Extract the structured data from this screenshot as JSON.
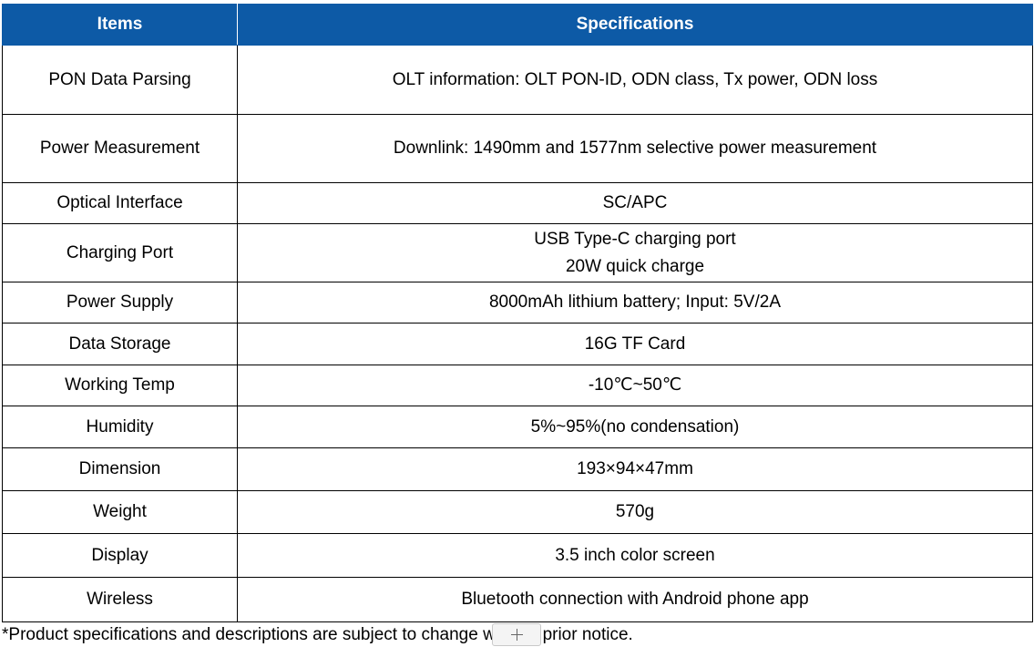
{
  "table": {
    "headers": {
      "items": "Items",
      "specifications": "Specifications"
    },
    "rows": [
      {
        "item": "PON Data Parsing",
        "spec": [
          "OLT information: OLT PON-ID, ODN class, Tx power, ODN loss"
        ]
      },
      {
        "item": "Power Measurement",
        "spec": [
          "Downlink: 1490mm and 1577nm selective power measurement"
        ]
      },
      {
        "item": "Optical Interface",
        "spec": [
          "SC/APC"
        ]
      },
      {
        "item": "Charging Port",
        "spec": [
          "USB Type-C charging port",
          "20W quick charge"
        ]
      },
      {
        "item": "Power Supply",
        "spec": [
          "8000mAh lithium battery; Input: 5V/2A"
        ]
      },
      {
        "item": "Data Storage",
        "spec": [
          "16G TF Card"
        ]
      },
      {
        "item": "Working Temp",
        "spec": [
          "-10℃~50℃"
        ]
      },
      {
        "item": "Humidity",
        "spec": [
          "5%~95%(no condensation)"
        ]
      },
      {
        "item": "Dimension",
        "spec": [
          "193×94×47mm"
        ]
      },
      {
        "item": "Weight",
        "spec": [
          "570g"
        ]
      },
      {
        "item": "Display",
        "spec": [
          "3.5 inch color screen"
        ]
      },
      {
        "item": "Wireless",
        "spec": [
          "Bluetooth connection with Android phone app"
        ]
      }
    ]
  },
  "footnote": "*Product specifications and descriptions are subject to change without prior notice.",
  "add_button": {
    "icon": "plus-icon"
  },
  "colors": {
    "header_bg": "#0d5aa6",
    "header_text": "#ffffff",
    "border": "#000000"
  }
}
